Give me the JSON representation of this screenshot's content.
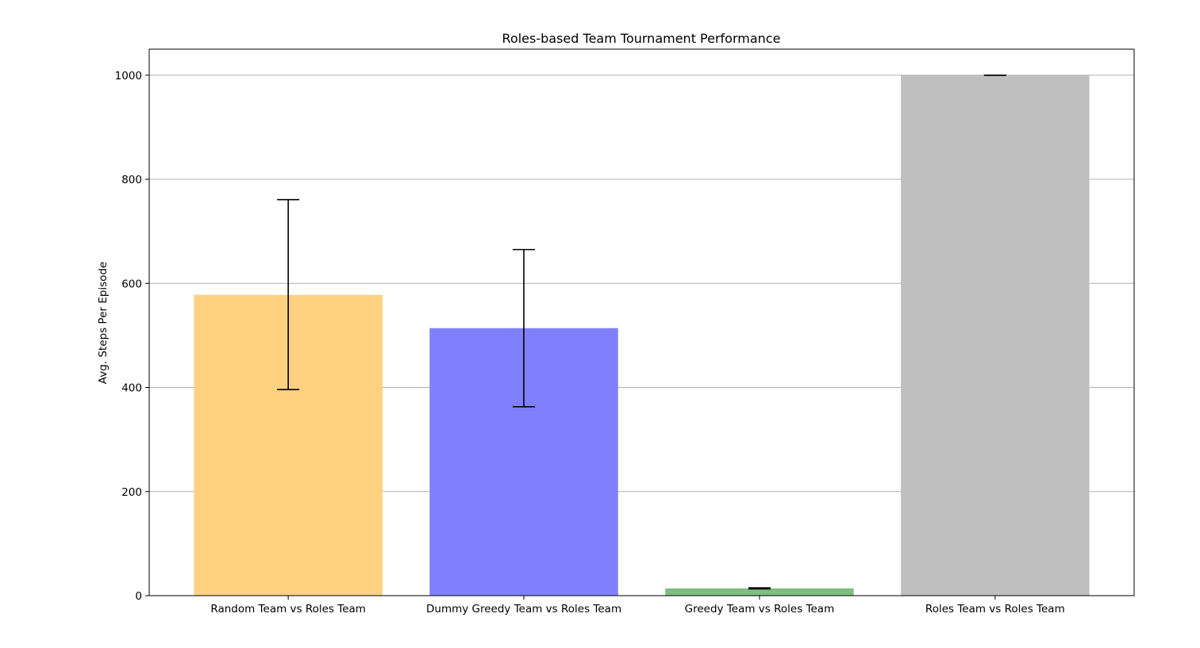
{
  "chart_data": {
    "type": "bar",
    "title": "Roles-based Team Tournament Performance",
    "xlabel": "",
    "ylabel": "Avg. Steps Per Episode",
    "categories": [
      "Random Team vs Roles Team",
      "Dummy Greedy Team vs Roles Team",
      "Greedy Team vs Roles Team",
      "Roles Team vs Roles Team"
    ],
    "values": [
      578,
      514,
      14,
      1000
    ],
    "error_low": [
      396,
      363,
      13,
      1000
    ],
    "error_high": [
      761,
      665,
      15,
      1000
    ],
    "colors": [
      "#fed180",
      "#8080ff",
      "#80be80",
      "#bfbfbf"
    ],
    "ylim": [
      0,
      1050
    ],
    "yticks": [
      0,
      200,
      400,
      600,
      800,
      1000
    ],
    "grid": "y"
  }
}
